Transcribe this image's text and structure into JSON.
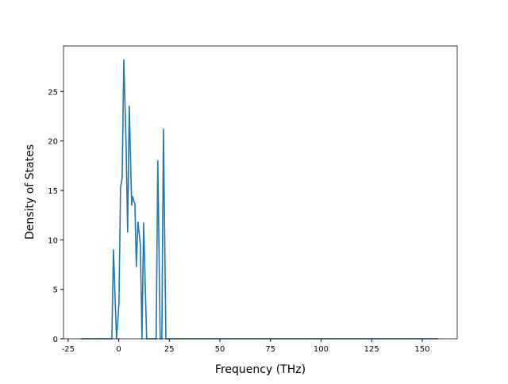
{
  "chart_data": {
    "type": "line",
    "x_label": "Frequency (THz)",
    "y_label": "Density of States",
    "x": [
      -18.7,
      -3.4,
      -2.6,
      -1.1,
      0.1,
      0.9,
      1.7,
      2.5,
      3.6,
      4.4,
      5.2,
      6.4,
      6.8,
      8.0,
      8.7,
      9.5,
      10.7,
      11.5,
      12.3,
      13.8,
      18.5,
      19.3,
      20.5,
      21.3,
      22.1,
      23.3,
      158
    ],
    "series": [
      {
        "color": "#1f77b4",
        "values": [
          0,
          0,
          9.0,
          0,
          3.5,
          15.3,
          16.3,
          28.2,
          20.0,
          10.8,
          23.5,
          13.5,
          14.4,
          13.6,
          7.3,
          11.8,
          9.5,
          0,
          11.7,
          0,
          0,
          18.0,
          0,
          0,
          21.2,
          0,
          0
        ]
      }
    ],
    "xlim": [
      -27.3,
      167.3
    ],
    "ylim": [
      0,
      29.6
    ],
    "xticks": [
      -25,
      0,
      25,
      50,
      75,
      100,
      125,
      150
    ],
    "yticks": [
      0,
      5,
      10,
      15,
      20,
      25
    ]
  }
}
